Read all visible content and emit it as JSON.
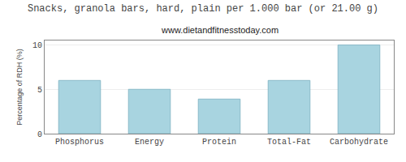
{
  "chart_data": {
    "type": "bar",
    "title": "Snacks, granola bars, hard, plain per 1.000 bar (or 21.00 g)",
    "subtitle": "www.dietandfitnesstoday.com",
    "categories": [
      "Phosphorus",
      "Energy",
      "Protein",
      "Total-Fat",
      "Carbohydrate"
    ],
    "values": [
      6.0,
      5.0,
      3.9,
      6.0,
      10.0
    ],
    "color": "#a8d4e0",
    "ylabel": "Percentage of RDH (%)",
    "ylim": [
      0,
      10.5
    ],
    "yticks": [
      0,
      5,
      10
    ],
    "grid": true
  }
}
